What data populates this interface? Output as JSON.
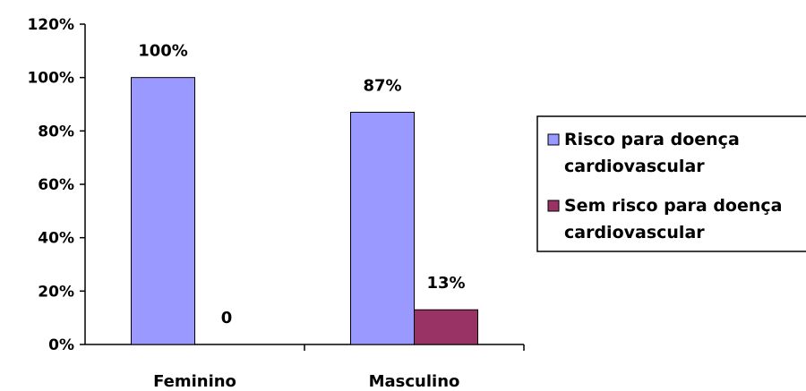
{
  "chart_data": {
    "type": "bar",
    "categories": [
      "Feminino",
      "Masculino"
    ],
    "series": [
      {
        "name": "Risco para doença cardiovascular",
        "legend_lines": [
          "Risco para doença",
          "cardiovascular"
        ],
        "values": [
          100,
          87
        ],
        "labels": [
          "100%",
          "87%"
        ],
        "color": "#9999ff"
      },
      {
        "name": "Sem risco para doença cardiovascular",
        "legend_lines": [
          "Sem risco para doença",
          "cardiovascular"
        ],
        "values": [
          0,
          13
        ],
        "labels": [
          "0",
          "13%"
        ],
        "color": "#993366"
      }
    ],
    "yticks": [
      "0%",
      "20%",
      "40%",
      "60%",
      "80%",
      "100%",
      "120%"
    ],
    "ylim": [
      0,
      120
    ],
    "title": "",
    "xlabel": "",
    "ylabel": "",
    "grid": false,
    "legend_position": "right"
  }
}
